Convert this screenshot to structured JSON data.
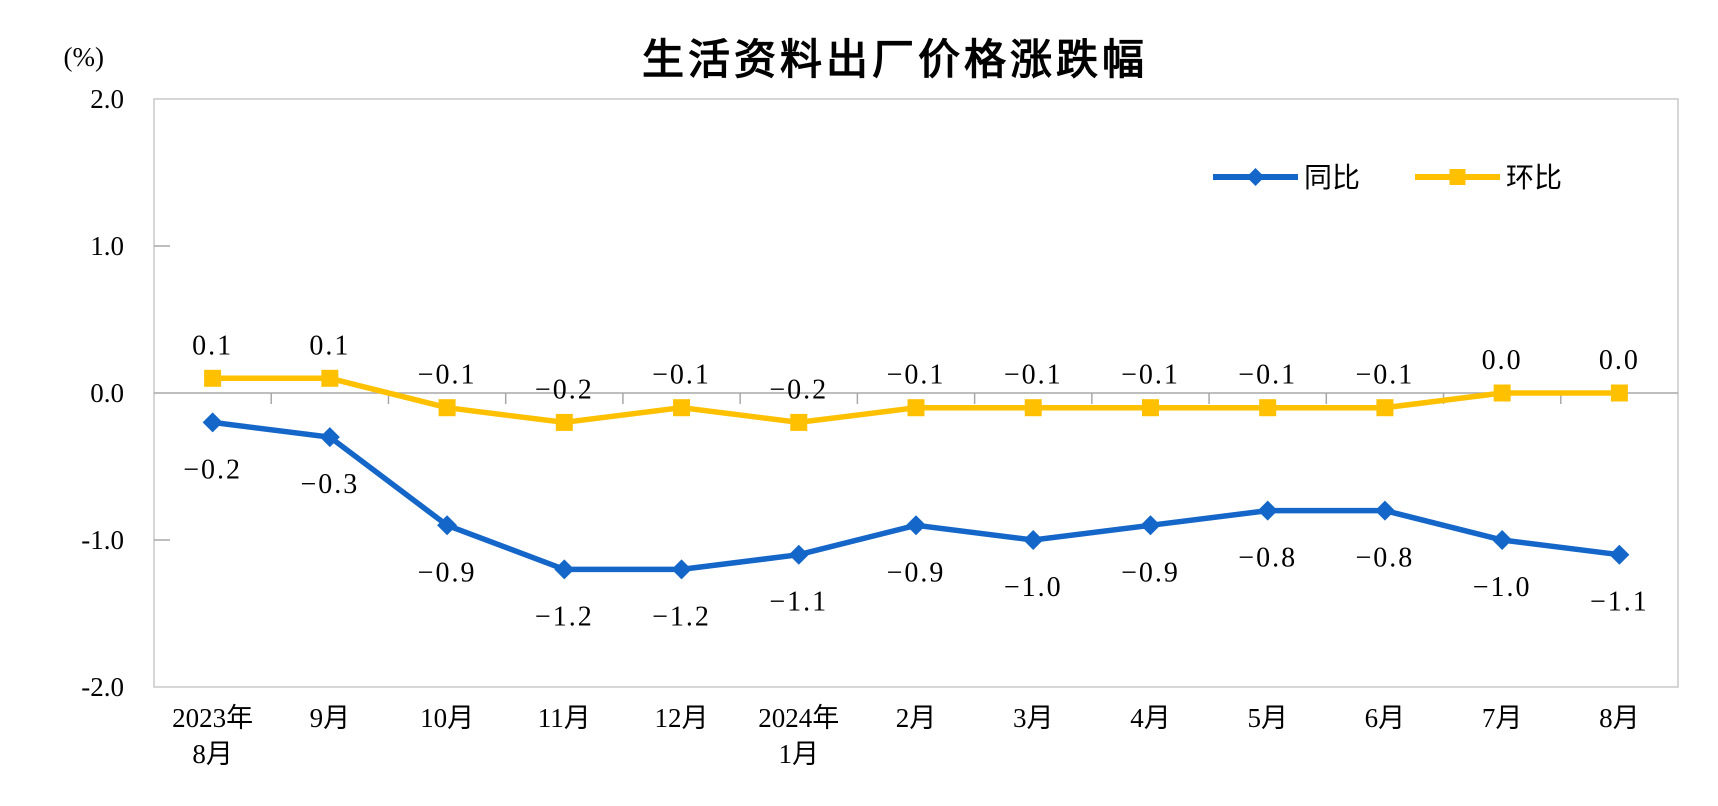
{
  "chart_data": {
    "type": "line",
    "title": "生活资料出厂价格涨跌幅",
    "ylabel": "(%)",
    "xlabel": "",
    "ylim": [
      -2.0,
      2.0
    ],
    "grid": "zero-baseline-only",
    "legend_position": "inside-top-right",
    "yticks": [
      {
        "label": "2.0",
        "value": 2.0
      },
      {
        "label": "1.0",
        "value": 1.0
      },
      {
        "label": "0.0",
        "value": 0.0
      },
      {
        "label": "-1.0",
        "value": -1.0
      },
      {
        "label": "-2.0",
        "value": -2.0
      }
    ],
    "categories": [
      [
        "2023年",
        "8月"
      ],
      [
        "9月"
      ],
      [
        "10月"
      ],
      [
        "11月"
      ],
      [
        "12月"
      ],
      [
        "2024年",
        "1月"
      ],
      [
        "2月"
      ],
      [
        "3月"
      ],
      [
        "4月"
      ],
      [
        "5月"
      ],
      [
        "6月"
      ],
      [
        "7月"
      ],
      [
        "8月"
      ]
    ],
    "series": [
      {
        "name": "同比",
        "marker": "diamond",
        "color": "#1467C8",
        "label_side": "below",
        "values": [
          -0.2,
          -0.3,
          -0.9,
          -1.2,
          -1.2,
          -1.1,
          -0.9,
          -1.0,
          -0.9,
          -0.8,
          -0.8,
          -1.0,
          -1.1
        ]
      },
      {
        "name": "环比",
        "marker": "square",
        "color": "#FFC000",
        "label_side": "above",
        "values": [
          0.1,
          0.1,
          -0.1,
          -0.2,
          -0.1,
          -0.2,
          -0.1,
          -0.1,
          -0.1,
          -0.1,
          -0.1,
          0.0,
          0.0
        ]
      }
    ],
    "colors": {
      "plot_border": "#C9C9C9",
      "zero_line": "#A8A8A8",
      "tick": "#A8A8A8",
      "text": "#000000",
      "background": "#FFFFFF"
    }
  }
}
